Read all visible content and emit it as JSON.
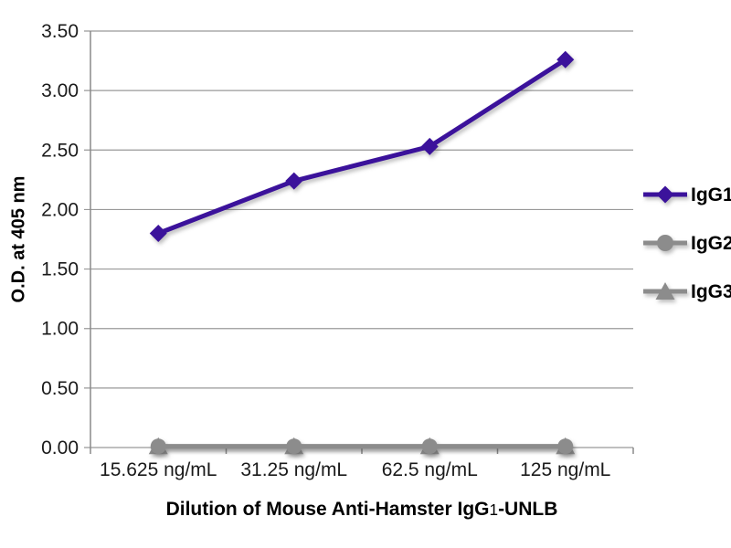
{
  "chart_data": {
    "type": "line",
    "title": "",
    "xlabel": "Dilution of Mouse Anti-Hamster IgG1-UNLB",
    "xlabel_parts": {
      "prefix": "Dilution of Mouse Anti-Hamster IgG",
      "sub": "1",
      "suffix": "-UNLB"
    },
    "ylabel": "O.D. at 405 nm",
    "categories": [
      "15.625 ng/mL",
      "31.25 ng/mL",
      "62.5 ng/mL",
      "125 ng/mL"
    ],
    "series": [
      {
        "name": "IgG1",
        "marker": "diamond",
        "color": "#3B129B",
        "values": [
          1.8,
          2.24,
          2.53,
          3.26
        ]
      },
      {
        "name": "IgG2",
        "marker": "circle",
        "color": "#8C8C8C",
        "values": [
          0.01,
          0.01,
          0.01,
          0.01
        ]
      },
      {
        "name": "IgG3",
        "marker": "triangle",
        "color": "#8C8C8C",
        "values": [
          0.01,
          0.01,
          0.01,
          0.01
        ]
      }
    ],
    "y_ticks": [
      "0.00",
      "0.50",
      "1.00",
      "1.50",
      "2.00",
      "2.50",
      "3.00",
      "3.50"
    ],
    "ylim": [
      0,
      3.5
    ],
    "grid": true,
    "legend_position": "right"
  },
  "colors": {
    "grid": "#999999",
    "axis": "#8a8a8a",
    "text": "#1a1a1a",
    "background": "#ffffff"
  }
}
